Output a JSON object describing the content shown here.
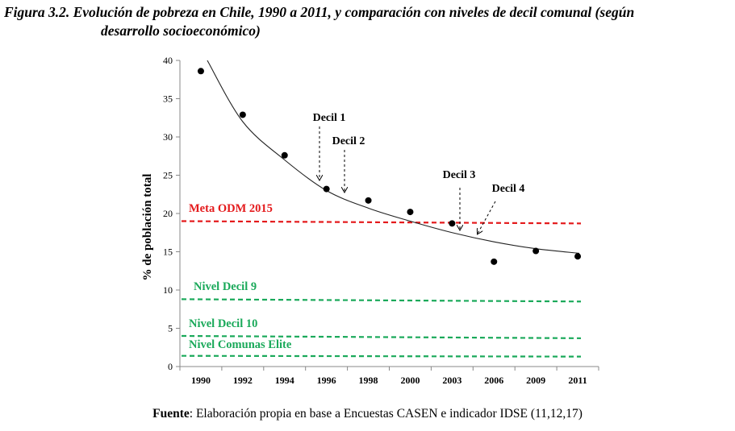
{
  "caption": {
    "line1": "Figura 3.2. Evolución de pobreza en Chile, 1990 a 2011, y comparación con niveles de decil comunal (según",
    "line2": "desarrollo socioeconómico)"
  },
  "source": {
    "label": "Fuente",
    "text": ": Elaboración propia en base a Encuestas CASEN e indicador IDSE (11,12,17)"
  },
  "chart_data": {
    "type": "scatter",
    "categories": [
      "1990",
      "1992",
      "1994",
      "1996",
      "1998",
      "2000",
      "2003",
      "2006",
      "2009",
      "2011"
    ],
    "ylabel": "% de población total",
    "xlabel": "",
    "ylim": [
      0,
      40
    ],
    "yticks": [
      0,
      5,
      10,
      15,
      20,
      25,
      30,
      35,
      40
    ],
    "grid": false,
    "series": [
      {
        "values": [
          38.6,
          32.9,
          27.6,
          23.2,
          21.7,
          20.2,
          18.7,
          13.7,
          15.1,
          14.4
        ]
      }
    ],
    "trendline": {
      "type": "power",
      "points": [
        {
          "x": "1990",
          "y": 40.0
        },
        {
          "x": "1992",
          "y": 32.0
        },
        {
          "x": "1994",
          "y": 27.0
        },
        {
          "x": "1996",
          "y": 23.0
        },
        {
          "x": "1998",
          "y": 20.7
        },
        {
          "x": "2000",
          "y": 19.0
        },
        {
          "x": "2003",
          "y": 17.5
        },
        {
          "x": "2006",
          "y": 16.3
        },
        {
          "x": "2009",
          "y": 15.4
        },
        {
          "x": "2011",
          "y": 14.8
        }
      ]
    },
    "reference_lines": [
      {
        "label": "Meta ODM 2015",
        "color": "#e41a1c",
        "y_start": 19.0,
        "y_end": 18.7
      },
      {
        "label": "Nivel Decil 9",
        "color": "#1aa95a",
        "y_start": 8.8,
        "y_end": 8.5
      },
      {
        "label": "Nivel Decil 10",
        "color": "#1aa95a",
        "y_start": 4.0,
        "y_end": 3.7
      },
      {
        "label": "Nivel Comunas Elite",
        "color": "#1aa95a",
        "y_start": 1.4,
        "y_end": 1.3
      }
    ],
    "annotations": [
      {
        "text": "Decil 1",
        "arrow": "down",
        "x": "1996",
        "y": 24.5
      },
      {
        "text": "Decil 2",
        "arrow": "down",
        "x": "1996",
        "y": 22.8
      },
      {
        "text": "Decil 3",
        "arrow": "down",
        "x": "2003",
        "y": 17.4
      },
      {
        "text": "Decil 4",
        "arrow": "down-left",
        "x": "2006",
        "y": 17.0
      }
    ]
  }
}
